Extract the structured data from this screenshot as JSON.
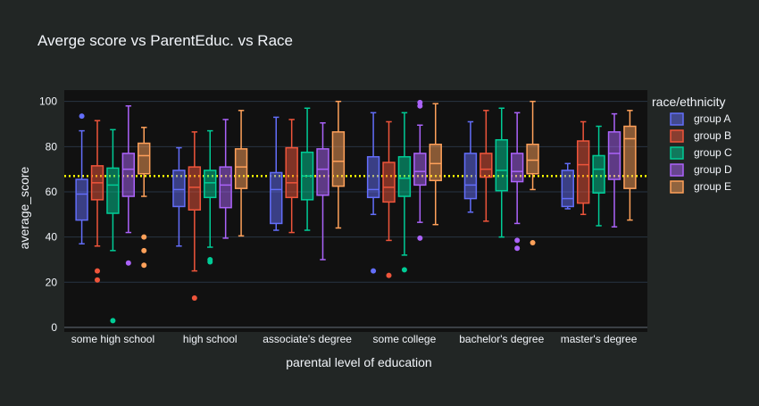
{
  "chart_data": {
    "type": "box",
    "title": "Averge score vs ParentEduc. vs Race",
    "xlabel": "parental level of education",
    "ylabel": "average_score",
    "ylim": [
      -2,
      105
    ],
    "yticks": [
      0,
      20,
      40,
      60,
      80,
      100
    ],
    "grid": true,
    "legend": {
      "title": "race/ethnicity",
      "placement": "right"
    },
    "reference_line": {
      "y": 67,
      "color": "#ffff00",
      "style": "dotted"
    },
    "categories": [
      "some high school",
      "high school",
      "associate's degree",
      "some college",
      "bachelor's degree",
      "master's degree"
    ],
    "series": [
      {
        "name": "group A",
        "color": "#636efa",
        "boxes": [
          {
            "lower": 37,
            "q1": 47.5,
            "median": 59,
            "q3": 65.5,
            "upper": 87,
            "outliers": [
              93.5
            ]
          },
          {
            "lower": 36,
            "q1": 53.5,
            "median": 61,
            "q3": 69.5,
            "upper": 79.5,
            "outliers": []
          },
          {
            "lower": 43,
            "q1": 46,
            "median": 61,
            "q3": 68.5,
            "upper": 93,
            "outliers": []
          },
          {
            "lower": 50,
            "q1": 57.5,
            "median": 61,
            "q3": 75.5,
            "upper": 95,
            "outliers": [
              25
            ]
          },
          {
            "lower": 51,
            "q1": 57,
            "median": 63,
            "q3": 77,
            "upper": 91,
            "outliers": []
          },
          {
            "lower": 52.5,
            "q1": 53.5,
            "median": 57,
            "q3": 69.5,
            "upper": 72.5,
            "outliers": []
          }
        ]
      },
      {
        "name": "group B",
        "color": "#ef553b",
        "boxes": [
          {
            "lower": 36,
            "q1": 56.5,
            "median": 64,
            "q3": 71.5,
            "upper": 91.5,
            "outliers": [
              25,
              21
            ]
          },
          {
            "lower": 25,
            "q1": 52,
            "median": 62,
            "q3": 71,
            "upper": 86.5,
            "outliers": [
              13
            ]
          },
          {
            "lower": 42,
            "q1": 57.5,
            "median": 64,
            "q3": 79.5,
            "upper": 92,
            "outliers": []
          },
          {
            "lower": 38.5,
            "q1": 55.5,
            "median": 62,
            "q3": 73,
            "upper": 91,
            "outliers": [
              23
            ]
          },
          {
            "lower": 47,
            "q1": 66.5,
            "median": 70,
            "q3": 77,
            "upper": 96,
            "outliers": []
          },
          {
            "lower": 50,
            "q1": 55,
            "median": 72,
            "q3": 82.5,
            "upper": 91,
            "outliers": []
          }
        ]
      },
      {
        "name": "group C",
        "color": "#00cc96",
        "boxes": [
          {
            "lower": 34,
            "q1": 50.5,
            "median": 63,
            "q3": 70.5,
            "upper": 87.5,
            "outliers": [
              3
            ]
          },
          {
            "lower": 35.5,
            "q1": 57.5,
            "median": 64,
            "q3": 69.5,
            "upper": 87,
            "outliers": [
              30,
              29
            ]
          },
          {
            "lower": 43,
            "q1": 56.5,
            "median": 67,
            "q3": 77.5,
            "upper": 97,
            "outliers": []
          },
          {
            "lower": 32,
            "q1": 58,
            "median": 66,
            "q3": 75.5,
            "upper": 95,
            "outliers": [
              25.5
            ]
          },
          {
            "lower": 40,
            "q1": 60.5,
            "median": 69.5,
            "q3": 83,
            "upper": 97,
            "outliers": []
          },
          {
            "lower": 45,
            "q1": 59.5,
            "median": 70,
            "q3": 76,
            "upper": 89,
            "outliers": []
          }
        ]
      },
      {
        "name": "group D",
        "color": "#ab63fa",
        "boxes": [
          {
            "lower": 42,
            "q1": 58,
            "median": 70,
            "q3": 77,
            "upper": 98,
            "outliers": [
              28.5
            ]
          },
          {
            "lower": 39.5,
            "q1": 53,
            "median": 63,
            "q3": 71,
            "upper": 92,
            "outliers": []
          },
          {
            "lower": 30,
            "q1": 58.5,
            "median": 70,
            "q3": 79,
            "upper": 90.5,
            "outliers": []
          },
          {
            "lower": 46.5,
            "q1": 63,
            "median": 69,
            "q3": 77,
            "upper": 89.5,
            "outliers": [
              39.5,
              98,
              99.5
            ]
          },
          {
            "lower": 46,
            "q1": 64.5,
            "median": 69,
            "q3": 77,
            "upper": 95,
            "outliers": [
              38.5,
              35
            ]
          },
          {
            "lower": 44.5,
            "q1": 65.5,
            "median": 77,
            "q3": 86.5,
            "upper": 94.5,
            "outliers": []
          }
        ]
      },
      {
        "name": "group E",
        "color": "#ffa15a",
        "boxes": [
          {
            "lower": 58,
            "q1": 68,
            "median": 76,
            "q3": 81.5,
            "upper": 88.5,
            "outliers": [
              40,
              34,
              27.5
            ]
          },
          {
            "lower": 40.5,
            "q1": 61.5,
            "median": 71,
            "q3": 79,
            "upper": 96,
            "outliers": []
          },
          {
            "lower": 44,
            "q1": 62.5,
            "median": 73.5,
            "q3": 86.5,
            "upper": 100,
            "outliers": []
          },
          {
            "lower": 45.5,
            "q1": 65,
            "median": 72.5,
            "q3": 81,
            "upper": 99,
            "outliers": []
          },
          {
            "lower": 61,
            "q1": 68,
            "median": 74,
            "q3": 81,
            "upper": 100,
            "outliers": [
              37.5
            ]
          },
          {
            "lower": 47.5,
            "q1": 61.5,
            "median": 83.5,
            "q3": 89,
            "upper": 96,
            "outliers": []
          }
        ]
      }
    ]
  }
}
